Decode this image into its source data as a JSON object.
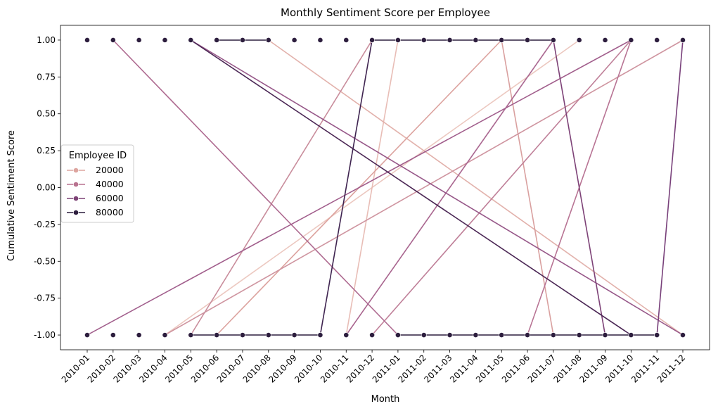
{
  "chart_data": {
    "type": "line",
    "title": "Monthly Sentiment Score per Employee",
    "xlabel": "Month",
    "ylabel": "Cumulative Sentiment Score",
    "categories": [
      "2010-01",
      "2010-02",
      "2010-03",
      "2010-04",
      "2010-05",
      "2010-06",
      "2010-07",
      "2010-08",
      "2010-09",
      "2010-10",
      "2010-11",
      "2010-12",
      "2011-01",
      "2011-02",
      "2011-03",
      "2011-04",
      "2011-05",
      "2011-06",
      "2011-07",
      "2011-08",
      "2011-09",
      "2011-10",
      "2011-11",
      "2011-12"
    ],
    "yticks": [
      "-1.00",
      "-0.75",
      "-0.50",
      "-0.25",
      "0.00",
      "0.25",
      "0.50",
      "0.75",
      "1.00"
    ],
    "ylim": [
      -1.1,
      1.1
    ],
    "grid": false,
    "legend": {
      "title": "Employee ID",
      "placement": "center-left",
      "entries": [
        {
          "label": "20000",
          "color": "#dda59f"
        },
        {
          "label": "40000",
          "color": "#b8728f"
        },
        {
          "label": "60000",
          "color": "#7d4276"
        },
        {
          "label": "80000",
          "color": "#2d1e3e"
        }
      ]
    },
    "series": [
      {
        "color": "#ecc8c0",
        "points": [
          [
            "2010-04",
            -1
          ],
          [
            "2011-08",
            1
          ]
        ]
      },
      {
        "color": "#e8bdb6",
        "points": [
          [
            "2010-11",
            -1
          ],
          [
            "2011-01",
            1
          ]
        ]
      },
      {
        "color": "#e2b1ab",
        "points": [
          [
            "2010-08",
            1
          ],
          [
            "2011-12",
            -1
          ]
        ]
      },
      {
        "color": "#dca29e",
        "points": [
          [
            "2010-06",
            -1
          ],
          [
            "2011-05",
            1
          ]
        ]
      },
      {
        "color": "#d9a09f",
        "points": [
          [
            "2011-05",
            1
          ],
          [
            "2011-07",
            -1
          ]
        ]
      },
      {
        "color": "#cf95a0",
        "points": [
          [
            "2010-04",
            -1
          ],
          [
            "2011-12",
            1
          ]
        ]
      },
      {
        "color": "#c98d9c",
        "points": [
          [
            "2010-05",
            -1
          ],
          [
            "2010-12",
            1
          ]
        ]
      },
      {
        "color": "#bf7f98",
        "points": [
          [
            "2010-12",
            -1
          ],
          [
            "2011-10",
            1
          ]
        ]
      },
      {
        "color": "#b87494",
        "points": [
          [
            "2011-06",
            -1
          ],
          [
            "2011-10",
            1
          ]
        ]
      },
      {
        "color": "#ae6a90",
        "points": [
          [
            "2010-02",
            1
          ],
          [
            "2011-01",
            -1
          ]
        ]
      },
      {
        "color": "#a8648e",
        "points": [
          [
            "2010-11",
            -1
          ],
          [
            "2011-07",
            1
          ]
        ]
      },
      {
        "color": "#a15e8c",
        "points": [
          [
            "2010-01",
            -1
          ],
          [
            "2011-10",
            1
          ]
        ]
      },
      {
        "color": "#975889",
        "points": [
          [
            "2010-05",
            1
          ],
          [
            "2011-12",
            -1
          ]
        ]
      },
      {
        "color": "#7d4277",
        "points": [
          [
            "2011-07",
            1
          ],
          [
            "2011-09",
            -1
          ]
        ]
      },
      {
        "color": "#78407a",
        "points": [
          [
            "2011-11",
            -1
          ],
          [
            "2011-12",
            1
          ]
        ]
      },
      {
        "color": "#4a2654",
        "points": [
          [
            "2010-05",
            1
          ],
          [
            "2011-10",
            -1
          ]
        ]
      },
      {
        "color": "#3f2450",
        "points": [
          [
            "2010-10",
            -1
          ],
          [
            "2010-12",
            1
          ]
        ]
      },
      {
        "color": "#2d1e3e",
        "points": [
          [
            "2010-06",
            1
          ],
          [
            "2010-08",
            1
          ]
        ]
      },
      {
        "color": "#2d1e3e",
        "points": [
          [
            "2010-12",
            1
          ],
          [
            "2011-07",
            1
          ]
        ]
      },
      {
        "color": "#2d1e3e",
        "points": [
          [
            "2010-05",
            -1
          ],
          [
            "2010-10",
            -1
          ]
        ]
      },
      {
        "color": "#2d1e3e",
        "points": [
          [
            "2011-01",
            -1
          ],
          [
            "2011-11",
            -1
          ]
        ]
      }
    ],
    "markers": {
      "color": "#2d1e3e",
      "top": [
        "2010-01",
        "2010-02",
        "2010-03",
        "2010-04",
        "2010-05",
        "2010-06",
        "2010-07",
        "2010-08",
        "2010-09",
        "2010-10",
        "2010-11",
        "2010-12",
        "2011-01",
        "2011-02",
        "2011-03",
        "2011-04",
        "2011-05",
        "2011-06",
        "2011-07",
        "2011-08",
        "2011-09",
        "2011-10",
        "2011-11",
        "2011-12"
      ],
      "bottom": [
        "2010-01",
        "2010-02",
        "2010-03",
        "2010-04",
        "2010-05",
        "2010-06",
        "2010-07",
        "2010-08",
        "2010-09",
        "2010-10",
        "2010-11",
        "2010-12",
        "2011-01",
        "2011-02",
        "2011-03",
        "2011-04",
        "2011-05",
        "2011-06",
        "2011-07",
        "2011-08",
        "2011-09",
        "2011-10",
        "2011-11",
        "2011-12"
      ]
    }
  }
}
